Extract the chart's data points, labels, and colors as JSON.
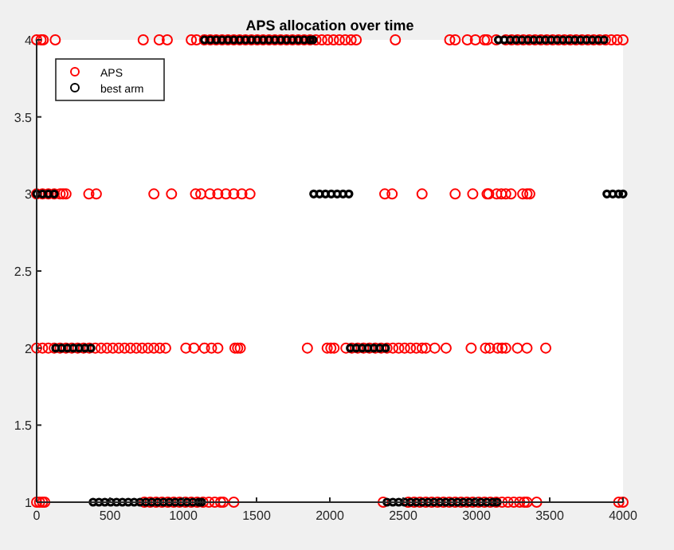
{
  "chart_data": {
    "type": "scatter",
    "title": "APS allocation over time",
    "xlim": [
      0,
      4000
    ],
    "xticks": [
      0,
      500,
      1000,
      1500,
      2000,
      2500,
      3000,
      3500,
      4000
    ],
    "ylim": [
      1,
      4
    ],
    "yticks": [
      1,
      1.5,
      2,
      2.5,
      3,
      3.5,
      4
    ],
    "marker": "circle",
    "legend": "top left",
    "grid": false,
    "series": [
      {
        "name": "APS",
        "color": "#ff0000",
        "x": [
          1145,
          1185,
          1225,
          1265,
          1305,
          1345,
          1385,
          1425,
          1465,
          1505,
          1545,
          1585,
          1625,
          1665,
          1705,
          1745,
          1785,
          1825,
          1865,
          1905,
          1945,
          1985,
          2025,
          2065,
          2105,
          2145,
          2180,
          3200,
          3240,
          3280,
          3320,
          3360,
          3400,
          3440,
          3480,
          3520,
          3560,
          3600,
          3640,
          3680,
          3720,
          3760,
          3800,
          3840,
          3880,
          3920,
          3960,
          4000,
          0,
          30,
          45,
          127,
          727,
          836,
          891,
          1055,
          1091,
          2447,
          2818,
          2855,
          2938,
          2993,
          3055,
          3073,
          3135,
          0,
          40,
          80,
          120,
          160,
          180,
          3138,
          3170,
          3200,
          3236,
          200,
          356,
          407,
          800,
          920,
          1084,
          1120,
          1182,
          1236,
          1291,
          1345,
          1400,
          1455,
          2375,
          2425,
          2629,
          2855,
          2975,
          3073,
          3084,
          3316,
          3345,
          3364,
          0,
          40,
          80,
          120,
          160,
          200,
          240,
          280,
          320,
          360,
          400,
          440,
          480,
          520,
          560,
          600,
          640,
          680,
          720,
          760,
          800,
          840,
          880,
          2110,
          2150,
          2190,
          2230,
          2270,
          2310,
          2350,
          2390,
          2430,
          2470,
          2510,
          2550,
          2590,
          2630,
          2655,
          1018,
          1073,
          1145,
          1193,
          1236,
          1353,
          1371,
          1389,
          1847,
          1982,
          2007,
          2029,
          2716,
          2793,
          2964,
          3062,
          3091,
          3145,
          3175,
          3200,
          3280,
          3345,
          3473,
          0,
          20,
          40,
          55,
          735,
          775,
          815,
          855,
          895,
          935,
          975,
          1015,
          1055,
          1095,
          1135,
          1175,
          1215,
          1255,
          1273,
          2575,
          2615,
          2655,
          2695,
          2735,
          2775,
          2815,
          2855,
          2895,
          2935,
          2975,
          3015,
          3055,
          3095,
          3135,
          3175,
          3215,
          3255,
          3295,
          3327,
          1345,
          2364,
          2535,
          3345,
          3411,
          3971,
          4000
        ],
        "values": [
          4,
          4,
          4,
          4,
          4,
          4,
          4,
          4,
          4,
          4,
          4,
          4,
          4,
          4,
          4,
          4,
          4,
          4,
          4,
          4,
          4,
          4,
          4,
          4,
          4,
          4,
          4,
          4,
          4,
          4,
          4,
          4,
          4,
          4,
          4,
          4,
          4,
          4,
          4,
          4,
          4,
          4,
          4,
          4,
          4,
          4,
          4,
          4,
          4,
          4,
          4,
          4,
          4,
          4,
          4,
          4,
          4,
          4,
          4,
          4,
          4,
          4,
          4,
          4,
          4,
          3,
          3,
          3,
          3,
          3,
          3,
          3,
          3,
          3,
          3,
          3,
          3,
          3,
          3,
          3,
          3,
          3,
          3,
          3,
          3,
          3,
          3,
          3,
          3,
          3,
          3,
          3,
          3,
          3,
          3,
          3,
          3,
          3,
          2,
          2,
          2,
          2,
          2,
          2,
          2,
          2,
          2,
          2,
          2,
          2,
          2,
          2,
          2,
          2,
          2,
          2,
          2,
          2,
          2,
          2,
          2,
          2,
          2,
          2,
          2,
          2,
          2,
          2,
          2,
          2,
          2,
          2,
          2,
          2,
          2,
          2,
          2,
          2,
          2,
          2,
          2,
          2,
          2,
          2,
          2,
          2,
          2,
          2,
          2,
          2,
          2,
          2,
          2,
          2,
          2,
          2,
          2,
          2,
          2,
          1,
          1,
          1,
          1,
          1,
          1,
          1,
          1,
          1,
          1,
          1,
          1,
          1,
          1,
          1,
          1,
          1,
          1,
          1,
          1,
          1,
          1,
          1,
          1,
          1,
          1,
          1,
          1,
          1,
          1,
          1,
          1,
          1,
          1,
          1,
          1,
          1,
          1,
          1,
          1,
          1,
          1,
          1,
          1,
          1,
          1
        ]
      },
      {
        "name": "best arm",
        "color": "#000000",
        "x": [
          0,
          40,
          80,
          120,
          130,
          170,
          210,
          250,
          290,
          330,
          370,
          385,
          425,
          465,
          505,
          545,
          585,
          625,
          665,
          705,
          745,
          785,
          825,
          865,
          905,
          945,
          985,
          1025,
          1065,
          1105,
          1125,
          1145,
          1185,
          1225,
          1265,
          1305,
          1345,
          1385,
          1425,
          1465,
          1505,
          1545,
          1585,
          1625,
          1665,
          1705,
          1745,
          1785,
          1825,
          1865,
          1885,
          1890,
          1930,
          1970,
          2010,
          2050,
          2090,
          2130,
          2140,
          2180,
          2220,
          2260,
          2300,
          2340,
          2380,
          2390,
          2430,
          2470,
          2510,
          2550,
          2590,
          2630,
          2670,
          2710,
          2750,
          2790,
          2830,
          2870,
          2910,
          2950,
          2990,
          3030,
          3070,
          3110,
          3140,
          3150,
          3190,
          3230,
          3270,
          3310,
          3350,
          3390,
          3430,
          3470,
          3510,
          3550,
          3590,
          3630,
          3670,
          3710,
          3750,
          3790,
          3830,
          3870,
          3890,
          3930,
          3970,
          4000
        ],
        "values": [
          3,
          3,
          3,
          3,
          2,
          2,
          2,
          2,
          2,
          2,
          2,
          1,
          1,
          1,
          1,
          1,
          1,
          1,
          1,
          1,
          1,
          1,
          1,
          1,
          1,
          1,
          1,
          1,
          1,
          1,
          1,
          4,
          4,
          4,
          4,
          4,
          4,
          4,
          4,
          4,
          4,
          4,
          4,
          4,
          4,
          4,
          4,
          4,
          4,
          4,
          4,
          3,
          3,
          3,
          3,
          3,
          3,
          3,
          2,
          2,
          2,
          2,
          2,
          2,
          2,
          1,
          1,
          1,
          1,
          1,
          1,
          1,
          1,
          1,
          1,
          1,
          1,
          1,
          1,
          1,
          1,
          1,
          1,
          1,
          1,
          4,
          4,
          4,
          4,
          4,
          4,
          4,
          4,
          4,
          4,
          4,
          4,
          4,
          4,
          4,
          4,
          4,
          4,
          4,
          3,
          3,
          3,
          3
        ]
      }
    ]
  }
}
